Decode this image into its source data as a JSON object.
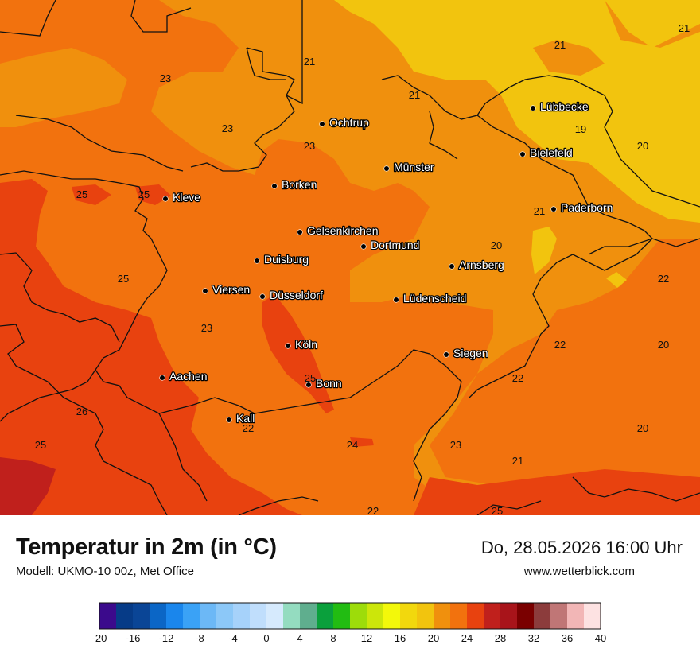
{
  "title": "Temperatur in 2m (in °C)",
  "model": "Modell: UKMO-10 00z, Met Office",
  "datetime": "Do, 28.05.2026 16:00 Uhr",
  "site": "www.wetterblick.com",
  "colors": {
    "t19": "#f2c40e",
    "t21": "#f0900d",
    "t23": "#f2720e",
    "t25": "#e8420f",
    "t27": "#c0201c",
    "border": "#111111",
    "city_label_outline": "#000000"
  },
  "cities": [
    {
      "name": "Lübbecke"
    },
    {
      "name": "Ochtrup"
    },
    {
      "name": "Bielefeld"
    },
    {
      "name": "Münster"
    },
    {
      "name": "Borken"
    },
    {
      "name": "Kleve"
    },
    {
      "name": "Paderborn"
    },
    {
      "name": "Gelsenkirchen"
    },
    {
      "name": "Dortmund"
    },
    {
      "name": "Duisburg"
    },
    {
      "name": "Arnsberg"
    },
    {
      "name": "Viersen"
    },
    {
      "name": "Düsseldorf"
    },
    {
      "name": "Lüdenscheid"
    },
    {
      "name": "Köln"
    },
    {
      "name": "Siegen"
    },
    {
      "name": "Aachen"
    },
    {
      "name": "Bonn"
    },
    {
      "name": "Kall"
    }
  ],
  "temperature_labels": [
    "21",
    "23",
    "21",
    "23",
    "23",
    "21",
    "19",
    "20",
    "25",
    "25",
    "21",
    "20",
    "25",
    "22",
    "23",
    "22",
    "20",
    "22",
    "25",
    "26",
    "22",
    "20",
    "24",
    "23",
    "25",
    "21",
    "22",
    "25"
  ],
  "legend": {
    "colors": [
      "#3b0a8c",
      "#063b87",
      "#0a4596",
      "#0b66c6",
      "#1a86ec",
      "#3aa2f6",
      "#6cb8f6",
      "#8cc8f8",
      "#a6d2fa",
      "#c0defc",
      "#d6eafd",
      "#94dcc0",
      "#5fae8e",
      "#0aa03c",
      "#22bc12",
      "#9ddc0a",
      "#cce60a",
      "#f3f80a",
      "#f2d80d",
      "#f2c40e",
      "#f0900d",
      "#f2720e",
      "#e8420f",
      "#c0201c",
      "#a8141a",
      "#7a0000",
      "#8c3c3c",
      "#c07676",
      "#f2b6b6",
      "#fde2e2"
    ],
    "ticks": [
      "-20",
      "-16",
      "-12",
      "-8",
      "-4",
      "0",
      "4",
      "8",
      "12",
      "16",
      "20",
      "24",
      "28",
      "32",
      "36",
      "40"
    ]
  }
}
